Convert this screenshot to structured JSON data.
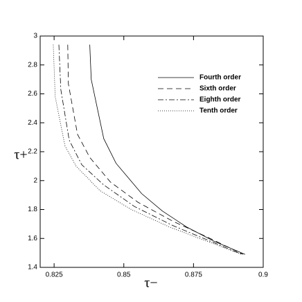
{
  "chart_data": {
    "type": "line",
    "xlabel": "τ−",
    "ylabel": "τ+",
    "xlim": [
      0.82,
      0.9
    ],
    "xticks": [
      0.825,
      0.85,
      0.875,
      0.9
    ],
    "ylim": [
      1.4,
      3
    ],
    "yticks": [
      1.4,
      1.6,
      1.8,
      2,
      2.2,
      2.4,
      2.6,
      2.8,
      3
    ],
    "legend": "upper right",
    "series": [
      {
        "name": "Fourth order",
        "color": "#000000",
        "dash": "solid",
        "x": [
          0.8378,
          0.8383,
          0.8428,
          0.8472,
          0.8564,
          0.8638,
          0.8725,
          0.8824,
          0.8935
        ],
        "values": [
          2.94,
          2.7,
          2.29,
          2.12,
          1.91,
          1.79,
          1.68,
          1.58,
          1.49
        ]
      },
      {
        "name": "Sixth order",
        "color": "#000000",
        "dash": "dashed",
        "x": [
          0.8299,
          0.8301,
          0.8334,
          0.8378,
          0.8452,
          0.8551,
          0.8675,
          0.8799,
          0.8928
        ],
        "values": [
          2.94,
          2.67,
          2.32,
          2.16,
          1.99,
          1.85,
          1.72,
          1.61,
          1.49
        ]
      },
      {
        "name": "Eighth order",
        "color": "#000000",
        "dash": "dashdot",
        "x": [
          0.8267,
          0.8274,
          0.8304,
          0.8349,
          0.8428,
          0.8539,
          0.8675,
          0.8799,
          0.8923
        ],
        "values": [
          2.94,
          2.63,
          2.28,
          2.11,
          1.97,
          1.82,
          1.69,
          1.59,
          1.49
        ]
      },
      {
        "name": "Tenth order",
        "color": "#000000",
        "dash": "dotted",
        "x": [
          0.8247,
          0.8254,
          0.8289,
          0.8329,
          0.8415,
          0.8527,
          0.8663,
          0.8799,
          0.8923
        ],
        "values": [
          2.94,
          2.58,
          2.24,
          2.1,
          1.93,
          1.8,
          1.68,
          1.58,
          1.49
        ]
      }
    ]
  }
}
